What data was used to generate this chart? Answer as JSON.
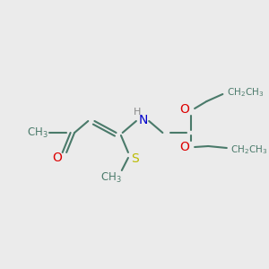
{
  "bg_color": "#ebebeb",
  "bond_color": "#4a7a6a",
  "bond_width": 1.5,
  "atom_colors": {
    "O": "#dd0000",
    "N": "#0000cc",
    "S": "#bbbb00",
    "C": "#4a7a6a"
  },
  "font_size": 9.5
}
